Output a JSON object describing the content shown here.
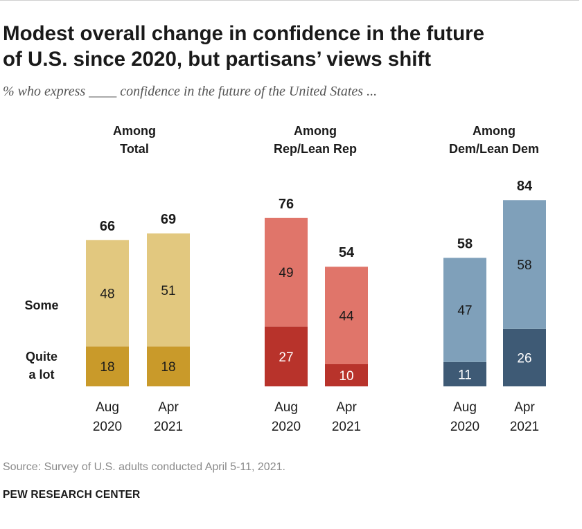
{
  "header": {
    "title_line1": "Modest overall change in confidence in the future",
    "title_line2": "of U.S. since 2020, but partisans’ views shift",
    "subtitle": "% who express ____ confidence in the future of the United States ..."
  },
  "footer": {
    "source": "Source: Survey of U.S. adults conducted April 5-11, 2021.",
    "credit": "PEW RESEARCH CENTER"
  },
  "chart_data": {
    "type": "bar",
    "stacked": true,
    "title": "Modest overall change in confidence in the future of U.S. since 2020, but partisans’ views shift",
    "ylim": [
      0,
      100
    ],
    "legend": {
      "some": "Some",
      "quite_line1": "Quite",
      "quite_line2": "a lot"
    },
    "groups": [
      {
        "id": "total",
        "label_line1": "Among",
        "label_line2": "Total",
        "colors": {
          "quite": "#c99a2a",
          "some": "#e2c87f"
        },
        "bars": [
          {
            "cat_line1": "Aug",
            "cat_line2": "2020",
            "quite": 18,
            "some": 48,
            "total": 66
          },
          {
            "cat_line1": "Apr",
            "cat_line2": "2021",
            "quite": 18,
            "some": 51,
            "total": 69
          }
        ]
      },
      {
        "id": "rep",
        "label_line1": "Among",
        "label_line2": "Rep/Lean Rep",
        "colors": {
          "quite": "#b8332b",
          "some": "#e0756a"
        },
        "bars": [
          {
            "cat_line1": "Aug",
            "cat_line2": "2020",
            "quite": 27,
            "some": 49,
            "total": 76
          },
          {
            "cat_line1": "Apr",
            "cat_line2": "2021",
            "quite": 10,
            "some": 44,
            "total": 54
          }
        ]
      },
      {
        "id": "dem",
        "label_line1": "Among",
        "label_line2": "Dem/Lean Dem",
        "colors": {
          "quite": "#3e5a75",
          "some": "#7fa0ba"
        },
        "bars": [
          {
            "cat_line1": "Aug",
            "cat_line2": "2020",
            "quite": 11,
            "some": 47,
            "total": 58
          },
          {
            "cat_line1": "Apr",
            "cat_line2": "2021",
            "quite": 26,
            "some": 58,
            "total": 84
          }
        ]
      }
    ]
  }
}
